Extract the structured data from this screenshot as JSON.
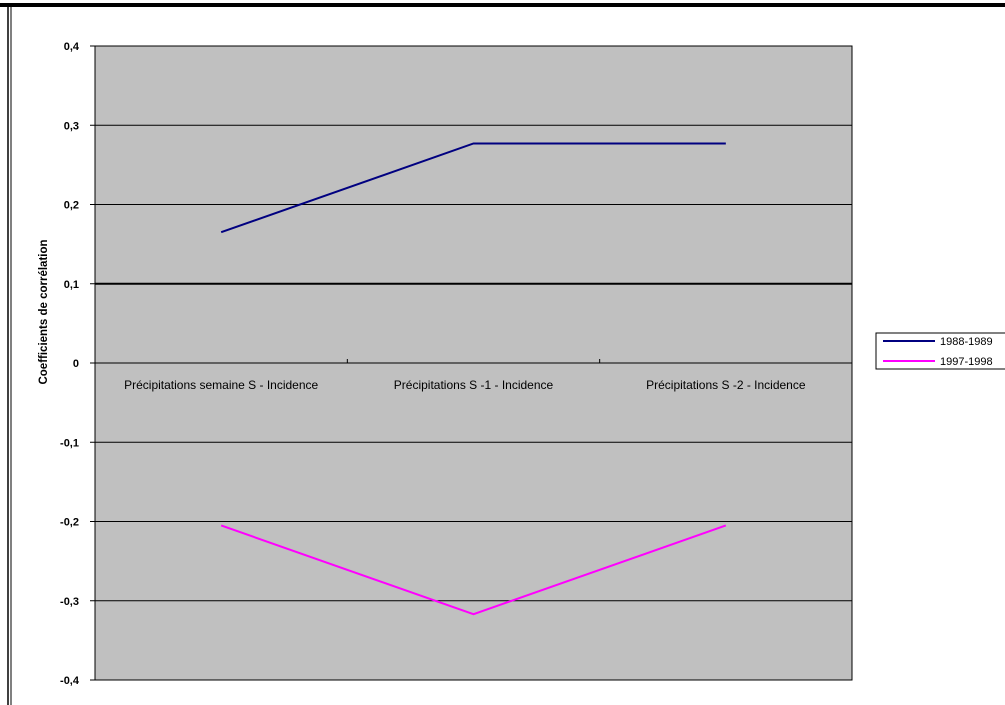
{
  "chart_data": {
    "type": "line",
    "title": "",
    "xlabel": "",
    "ylabel": "Coefficients de corrélation",
    "ylim": [
      -0.4,
      0.4
    ],
    "ytick_step": 0.1,
    "yticks": [
      "0,4",
      "0,3",
      "0,2",
      "0,1",
      "0",
      "-0,1",
      "-0,2",
      "-0,3",
      "-0,4"
    ],
    "grid": true,
    "legend_position": "right",
    "categories": [
      "Précipitations semaine S - Incidence",
      "Précipitations S -1 - Incidence",
      "Précipitations S -2 - Incidence"
    ],
    "series": [
      {
        "name": "1988-1989",
        "values": [
          0.165,
          0.277,
          0.277
        ],
        "color": "#000080"
      },
      {
        "name": "1997-1998",
        "values": [
          -0.205,
          -0.317,
          -0.205
        ],
        "color": "#ff00ff"
      }
    ],
    "plot_background": "#c0c0c0"
  }
}
